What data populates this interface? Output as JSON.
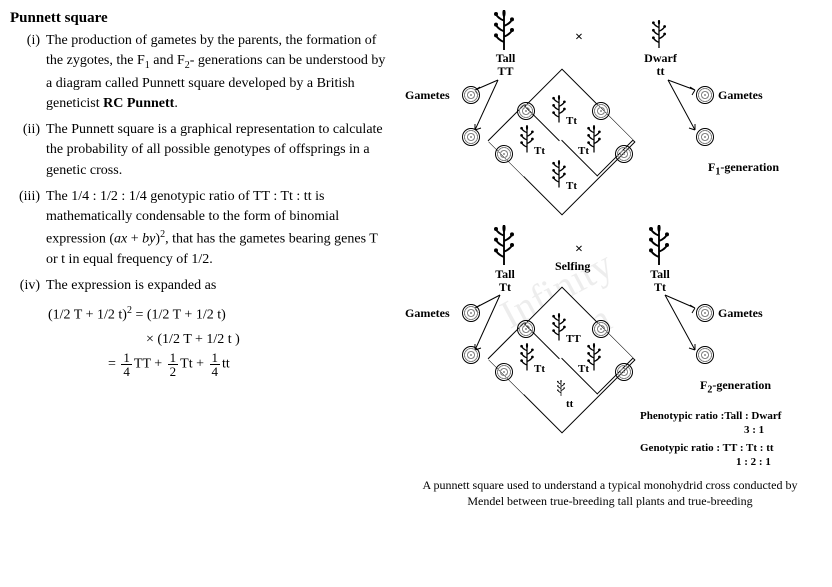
{
  "title": "Punnett square",
  "items": [
    {
      "num": "(i)",
      "html": "The production of gametes by the parents, the formation of the zygotes, the F<span class='sub'>1</span> and F<span class='sub'>2</span>- generations can be understood by a diagram called Punnett square developed by a British geneticist <span class='bold'>RC Punnett</span>."
    },
    {
      "num": "(ii)",
      "html": "The Punnett square is a graphical representation to calculate the probability of all possible genotypes of offsprings in a genetic cross."
    },
    {
      "num": "(iii)",
      "html": "The 1/4 : 1/2 : 1/4 genotypic ratio of TT : Tt : tt is mathematically condensable to the form of binomial expression (<i>ax</i> + <i>by</i>)<span class='sup'>2</span>, that has the gametes bearing genes T or t in equal frequency of 1/2."
    },
    {
      "num": "(iv)",
      "html": "The expression is expanded as"
    }
  ],
  "equation": {
    "line1": "(1/2 T + 1/2 t)<span class='sup'>2</span> = (1/2 T + 1/2 t)",
    "line2": "× (1/2 T + 1/2 t )",
    "frac_parts": [
      "1",
      "4",
      "TT",
      "1",
      "2",
      "Tt",
      "1",
      "4",
      "tt"
    ]
  },
  "diagram": {
    "p_tall": {
      "label": "Tall",
      "geno": "TT"
    },
    "p_dwarf": {
      "label": "Dwarf",
      "geno": "tt"
    },
    "gametes_label": "Gametes",
    "f1_label": "F₁-generation",
    "f1_geno": "Tt",
    "selfing": "Selfing",
    "f2_label": "F₂-generation",
    "f2_genos": [
      "TT",
      "Tt",
      "Tt",
      "tt"
    ],
    "pheno_ratio_label": "Phenotypic ratio :",
    "pheno_ratio": "Tall : Dwarf",
    "pheno_values": "3  :  1",
    "geno_ratio_label": "Genotypic ratio :",
    "geno_ratio": "TT : Tt : tt",
    "geno_values": "1  :  2  :  1",
    "caption": "A punnett square used to understand a typical monohydrid cross conducted by Mendel between true-breeding tall plants and true-breeding"
  },
  "watermark": "Infinity Learn"
}
